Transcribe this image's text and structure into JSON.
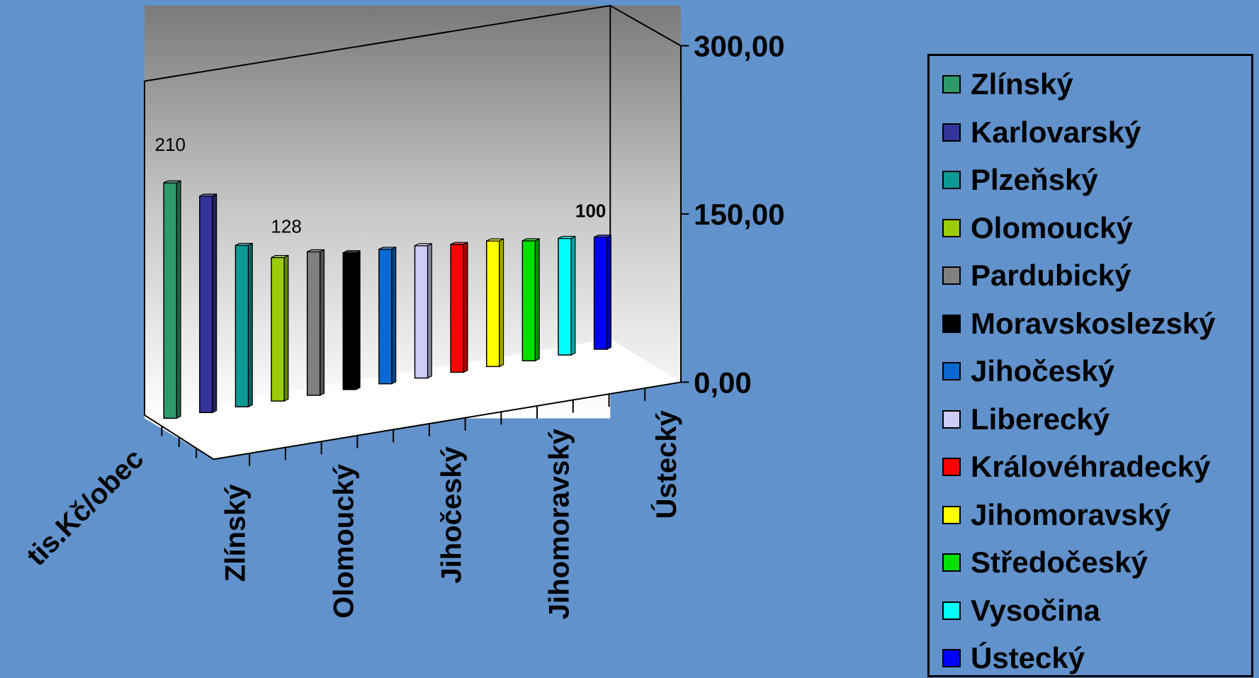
{
  "chart_data": {
    "type": "bar",
    "style": "3d",
    "ylabel": "tis.Kč/obec",
    "ylim": [
      0,
      300
    ],
    "yticks": [
      "300,00",
      "150,00",
      "0,00"
    ],
    "ytick_values": [
      300,
      150,
      0
    ],
    "xtick_labels": [
      "Zlínský",
      "Olomoucký",
      "Jihočeský",
      "Jihomoravský",
      "Ústecký"
    ],
    "categories": [
      "Zlínský",
      "Karlovarský",
      "Plzeňský",
      "Olomoucký",
      "Pardubický",
      "Moravskoslezský",
      "Jihočeský",
      "Liberecký",
      "Královéhradecký",
      "Jihomoravský",
      "Středočeský",
      "Vysočina",
      "Ústecký"
    ],
    "values": [
      210,
      193,
      144,
      128,
      128,
      122,
      120,
      118,
      114,
      112,
      107,
      104,
      100
    ],
    "data_labels": [
      {
        "index": 0,
        "text": "210",
        "bold": false
      },
      {
        "index": 3,
        "text": "128",
        "bold": false
      },
      {
        "index": 12,
        "text": "100",
        "bold": true
      }
    ],
    "colors": [
      "#2e9a6a",
      "#343399",
      "#0d9a97",
      "#9acc0a",
      "#808080",
      "#000000",
      "#0b6ad2",
      "#ccccf7",
      "#ff0000",
      "#ffff00",
      "#00e000",
      "#00ffff",
      "#0000ff"
    ],
    "legend": {
      "position": "right"
    },
    "grid": false
  }
}
